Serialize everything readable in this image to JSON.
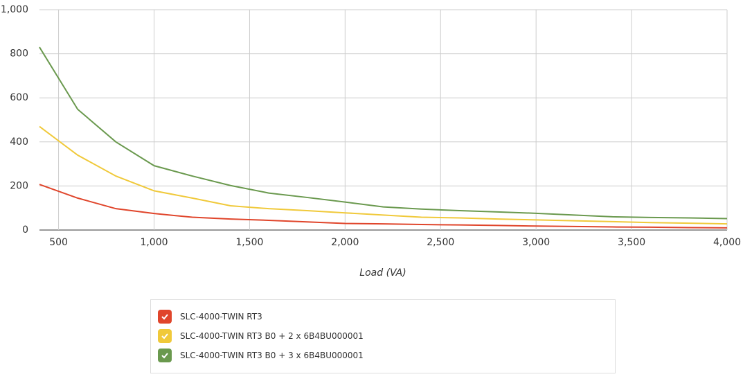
{
  "chart_data": {
    "type": "line",
    "x_label": "Load (VA)",
    "x": [
      400,
      600,
      800,
      1000,
      1200,
      1400,
      1600,
      1800,
      2000,
      2200,
      2400,
      2600,
      2800,
      3000,
      3200,
      3400,
      3600,
      3800,
      4000
    ],
    "series": [
      {
        "name": "SLC-4000-TWIN RT3",
        "color": "#e0452b",
        "values": [
          207,
          145,
          97,
          75,
          58,
          50,
          44,
          37,
          30,
          28,
          25,
          23,
          21,
          18,
          16,
          14,
          13,
          11,
          10
        ]
      },
      {
        "name": "SLC-4000-TWIN RT3 B0 + 2 x 6B4BU000001",
        "color": "#f0c93a",
        "values": [
          470,
          340,
          245,
          178,
          145,
          110,
          97,
          88,
          78,
          68,
          58,
          55,
          50,
          46,
          42,
          38,
          34,
          31,
          28
        ]
      },
      {
        "name": "SLC-4000-TWIN RT3 B0 + 3 x 6B4BU000001",
        "color": "#6a994e",
        "values": [
          830,
          548,
          400,
          292,
          245,
          202,
          168,
          148,
          127,
          105,
          95,
          88,
          82,
          76,
          68,
          60,
          57,
          55,
          52
        ]
      }
    ],
    "xlim": [
      400,
      4000
    ],
    "xticks": [
      500,
      {
        "value": 1000,
        "label": "1,000"
      },
      {
        "value": 1500,
        "label": "1,500"
      },
      {
        "value": 2000,
        "label": "2,000"
      },
      {
        "value": 2500,
        "label": "2,500"
      },
      {
        "value": 3000,
        "label": "3,000"
      },
      {
        "value": 3500,
        "label": "3,500"
      },
      {
        "value": 4000,
        "label": "4,000"
      }
    ],
    "ylim": [
      0,
      1000
    ],
    "yticks": [
      0,
      200,
      400,
      600,
      800,
      {
        "value": 1000,
        "label": "1,000"
      }
    ],
    "grid": true
  }
}
